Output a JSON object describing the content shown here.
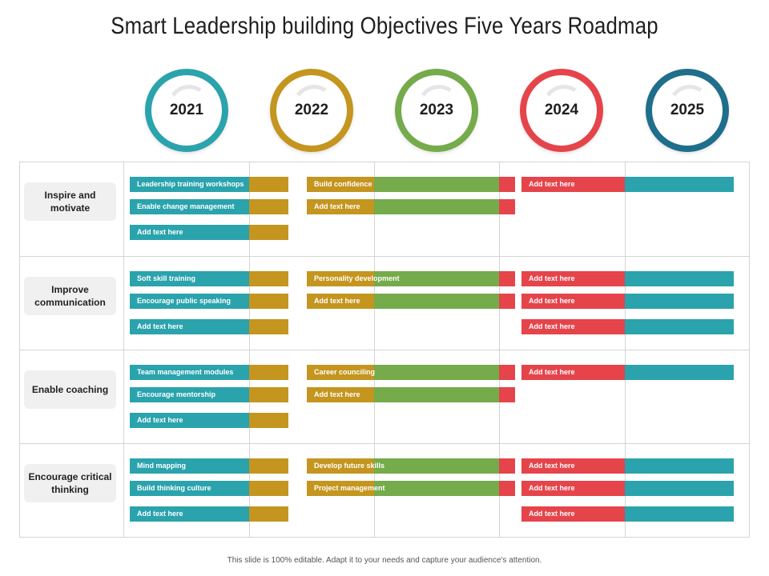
{
  "title": "Smart Leadership building Objectives Five Years Roadmap",
  "colors": {
    "teal": "#2aa3ad",
    "gold": "#c4951f",
    "green": "#75ab4b",
    "red": "#e5444b",
    "navy": "#1f6e8c"
  },
  "years": [
    {
      "label": "2021",
      "color": "#2aa3ad"
    },
    {
      "label": "2022",
      "color": "#c4951f"
    },
    {
      "label": "2023",
      "color": "#75ab4b"
    },
    {
      "label": "2024",
      "color": "#e5444b"
    },
    {
      "label": "2025",
      "color": "#1f6e8c"
    }
  ],
  "rows": [
    {
      "label": "Inspire and motivate",
      "col1": [
        "Leadership training workshops",
        "Enable change management",
        "Add text here"
      ],
      "col2": [
        "Build confidence",
        "Add text here"
      ],
      "col3": [
        "Add text here"
      ]
    },
    {
      "label": "Improve communication",
      "col1": [
        "Soft skill training",
        "Encourage public speaking",
        "Add text here"
      ],
      "col2": [
        "Personality development",
        "Add text here"
      ],
      "col3": [
        "Add text here",
        "Add text here",
        "Add text here"
      ]
    },
    {
      "label": "Enable coaching",
      "col1": [
        "Team management modules",
        "Encourage mentorship",
        "Add text here"
      ],
      "col2": [
        "Career counciling",
        "Add text here"
      ],
      "col3": [
        "Add text here"
      ]
    },
    {
      "label": "Encourage critical thinking",
      "col1": [
        "Mind mapping",
        "Build thinking culture",
        "Add text here"
      ],
      "col2": [
        "Develop future skills",
        "Project management"
      ],
      "col3": [
        "Add text here",
        "Add text here",
        "Add text here"
      ]
    }
  ],
  "footer": "This slide is 100% editable. Adapt it to your needs and capture your audience's attention."
}
